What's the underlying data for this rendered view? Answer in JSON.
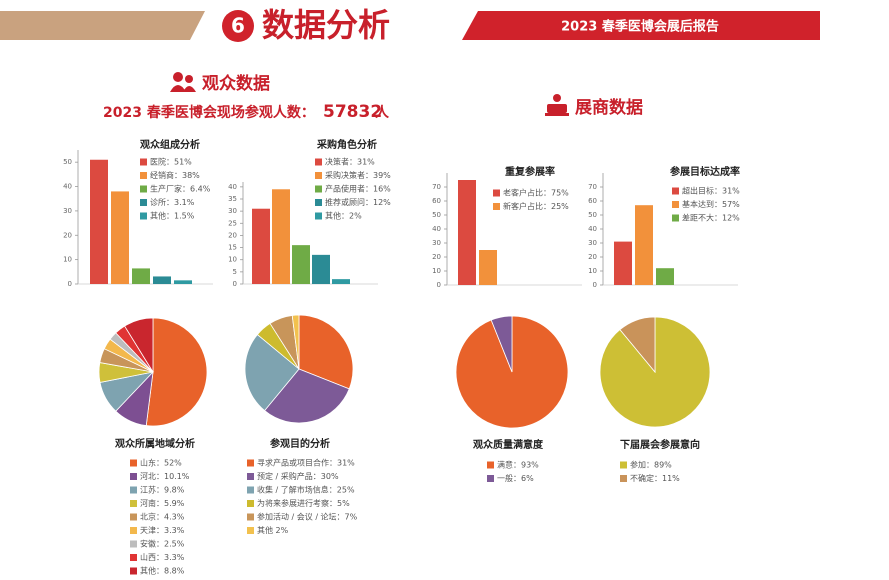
{
  "header": {
    "number": "6",
    "title": "数据分析",
    "report": "2023 春季医博会展后报告"
  },
  "audience": {
    "title": "观众数据",
    "visitors_label": "2023 春季医博会现场参观人数：",
    "visitors": 57832,
    "visitors_unit": "人"
  },
  "exhibitor": {
    "title": "展商数据"
  },
  "chart_data": [
    {
      "type": "bar",
      "title": "观众组成分析",
      "legend": [
        "医院：51%",
        "经销商：38%",
        "生产厂家：6.4%",
        "诊所：3.1%",
        "其他：1.5%"
      ],
      "values": [
        51,
        38,
        6.4,
        3.1,
        1.5
      ],
      "colors": [
        "#dc4a40",
        "#f2913b",
        "#6fab46",
        "#2b8b95",
        "#2f9aa2"
      ],
      "ylim": [
        0,
        55
      ],
      "yticks": [
        0,
        10,
        20,
        30,
        40,
        50
      ]
    },
    {
      "type": "bar",
      "title": "采购角色分析",
      "legend": [
        "决策者：31%",
        "采购决策者：39%",
        "产品使用者：16%",
        "推荐或顾问：12%",
        "其他：2%"
      ],
      "values": [
        31,
        39,
        16,
        12,
        2
      ],
      "colors": [
        "#dc4a40",
        "#f2913b",
        "#6fab46",
        "#2b8b95",
        "#2f9aa2"
      ],
      "ylim": [
        0,
        42
      ],
      "yticks": [
        0,
        5,
        10,
        15,
        20,
        25,
        30,
        35,
        40
      ]
    },
    {
      "type": "bar",
      "title": "重复参展率",
      "legend": [
        "老客户占比：75%",
        "新客户占比：25%"
      ],
      "values": [
        75,
        25
      ],
      "colors": [
        "#dc4a40",
        "#f2913b"
      ],
      "ylim": [
        0,
        80
      ],
      "yticks": [
        0,
        10,
        20,
        30,
        40,
        50,
        60,
        70
      ]
    },
    {
      "type": "bar",
      "title": "参展目标达成率",
      "legend": [
        "超出目标：31%",
        "基本达到：57%",
        "差距不大：12%"
      ],
      "values": [
        31,
        57,
        12
      ],
      "colors": [
        "#dc4a40",
        "#f2913b",
        "#6fab46"
      ],
      "ylim": [
        0,
        80
      ],
      "yticks": [
        0,
        10,
        20,
        30,
        40,
        50,
        60,
        70
      ]
    },
    {
      "type": "pie",
      "title": "观众所属地域分析",
      "legend": [
        "山东：52%",
        "河北：10.1%",
        "江苏：9.8%",
        "河南：5.9%",
        "北京：4.3%",
        "天津：3.3%",
        "安徽：2.5%",
        "山西：3.3%",
        "其他：8.8%"
      ],
      "values": [
        52,
        10.1,
        9.8,
        5.9,
        4.3,
        3.3,
        2.5,
        3.3,
        8.8
      ],
      "colors": [
        "#e8622a",
        "#7d4f92",
        "#7ea3b0",
        "#cfc03a",
        "#c8955a",
        "#f3b84c",
        "#bdbdbd",
        "#e03434",
        "#c9262e"
      ]
    },
    {
      "type": "pie",
      "title": "参观目的分析",
      "legend": [
        "寻求产品或项目合作：31%",
        "预定 / 采购产品：30%",
        "收集 / 了解市场信息：25%",
        "为将来参展进行考察：5%",
        "参加活动 / 会议 / 论坛：7%",
        "其他 2%"
      ],
      "values": [
        31,
        30,
        25,
        5,
        7,
        2
      ],
      "colors": [
        "#e8622a",
        "#7d5a97",
        "#7ea3b0",
        "#cdbb2e",
        "#c8955a",
        "#f2c14e"
      ]
    },
    {
      "type": "pie",
      "title": "观众质量满意度",
      "legend": [
        "满意：93%",
        "一般：6%"
      ],
      "values": [
        93,
        6
      ],
      "colors": [
        "#e8622a",
        "#7d5a97"
      ]
    },
    {
      "type": "pie",
      "title": "下届展会参展意向",
      "legend": [
        "参加：89%",
        "不确定：11%"
      ],
      "values": [
        89,
        11
      ],
      "colors": [
        "#cdbf35",
        "#c9935a"
      ]
    }
  ]
}
